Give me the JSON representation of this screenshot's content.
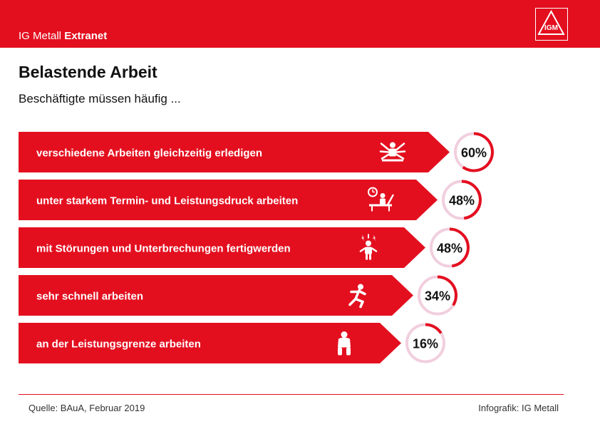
{
  "header": {
    "brand_light": "IG Metall",
    "brand_bold": "Extranet",
    "logo_text": "IGM"
  },
  "colors": {
    "brand_red": "#e30f1f",
    "ring_track": "#f1cfde",
    "ring_fill": "#e30f1f",
    "bar_text": "#ffffff"
  },
  "chart_data": {
    "type": "bar",
    "title": "Belastende Arbeit",
    "subtitle": "Beschäftigte müssen häufig ...",
    "unit": "%",
    "categories": [
      "verschiedene Arbeiten gleichzeitig erledigen",
      "unter starkem Termin- und Leistungsdruck arbeiten",
      "mit Störungen und Unterbrechungen fertigwerden",
      "sehr schnell arbeiten",
      "an der Leistungsgrenze arbeiten"
    ],
    "values": [
      60,
      48,
      48,
      34,
      16
    ],
    "value_labels": [
      "60%",
      "48%",
      "48%",
      "34%",
      "16%"
    ],
    "icons": [
      "multitasking-icon",
      "deadline-pressure-icon",
      "interruption-icon",
      "running-icon",
      "exhausted-icon"
    ]
  },
  "footer": {
    "source": "Quelle:  BAuA, Februar 2019",
    "credit": "Infografik: IG Metall"
  }
}
